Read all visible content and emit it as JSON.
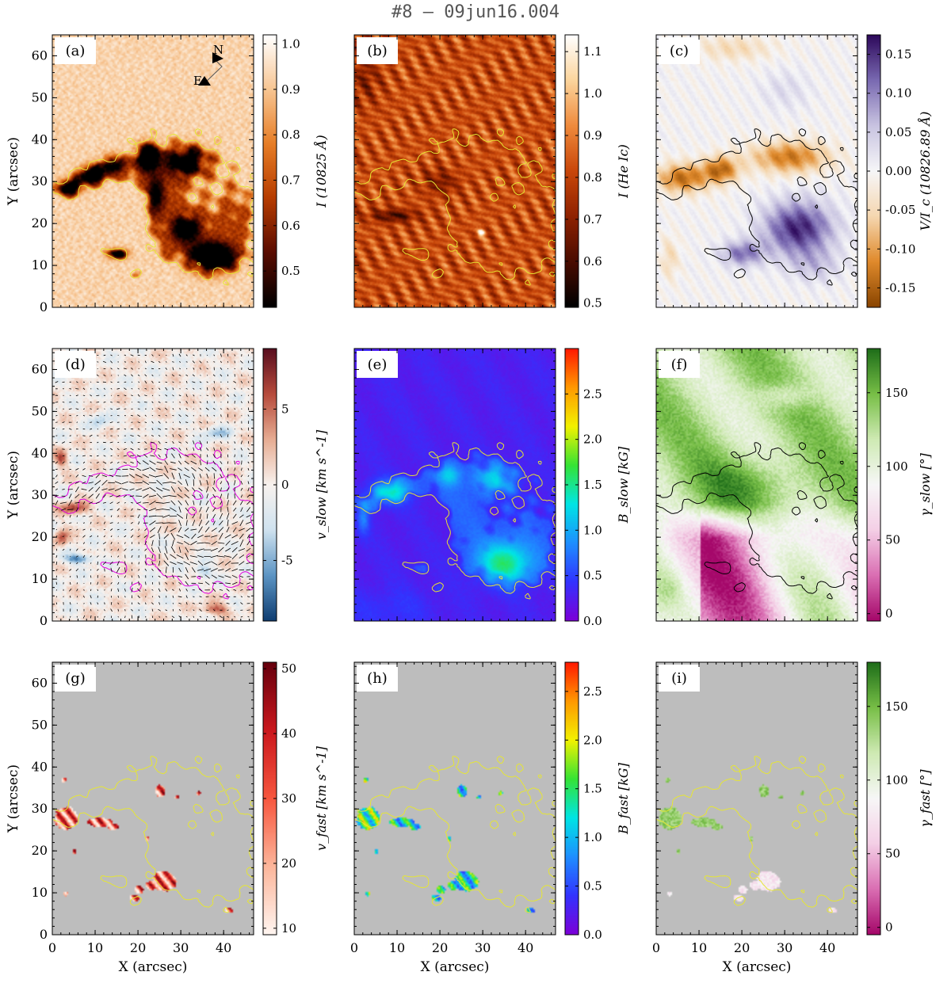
{
  "figure": {
    "title": "#8 – 09jun16.004",
    "x_label": "X (arcsec)",
    "y_label": "Y (arcsec)",
    "x_ticks": [
      0,
      10,
      20,
      30,
      40
    ],
    "y_ticks": [
      0,
      10,
      20,
      30,
      40,
      50,
      60
    ]
  },
  "colors": {
    "orange_map": [
      "#000000",
      "#5a0c00",
      "#b63c00",
      "#e67d26",
      "#f7c592",
      "#ffffff"
    ],
    "redhot_map": [
      "#000000",
      "#4a0c00",
      "#8f2200",
      "#c9470a",
      "#ef8a3c",
      "#fbd49c",
      "#ffffff"
    ],
    "circpol_map": [
      "#8a4500",
      "#e08a2c",
      "#f5d7b0",
      "#f6f6f8",
      "#c9c4e1",
      "#7a6ab2",
      "#2e0a5c"
    ],
    "doppler_map": [
      "#0f3e72",
      "#5d95c4",
      "#cfe2ef",
      "#f8f2ee",
      "#e7ad93",
      "#b74c3d",
      "#5a0f1f"
    ],
    "rainbow_map": [
      "#7b00d8",
      "#3233ff",
      "#1e8fff",
      "#00e5e5",
      "#35e335",
      "#f2f200",
      "#ff9a00",
      "#ff1a00"
    ],
    "incl_map": [
      "#a5086a",
      "#da6fb3",
      "#f4cfe6",
      "#f7f7f7",
      "#cfeab4",
      "#78bf47",
      "#1f6e1a"
    ],
    "reds_map": [
      "#fff5f0",
      "#fcb69b",
      "#f7573f",
      "#cb181d",
      "#67000d"
    ],
    "contour_yellow": "#e6e633",
    "contour_magenta": "#e100e1",
    "masked_gray": "#bdbdbd"
  },
  "chart_data": [
    {
      "id": "a",
      "type": "heatmap",
      "label": "(a)",
      "quantity": "continuum intensity",
      "colorbar_label": "I (10825 Å)",
      "range": [
        0.42,
        1.02
      ],
      "ticks": [
        0.5,
        0.6,
        0.7,
        0.8,
        0.9,
        1.0
      ],
      "tick_labels": [
        "0.5",
        "0.6",
        "0.7",
        "0.8",
        "0.9",
        "1.0"
      ],
      "colormap": "orange_map",
      "mode": "cont",
      "orientation": {
        "north": "N",
        "east": "E"
      }
    },
    {
      "id": "b",
      "type": "heatmap",
      "label": "(b)",
      "quantity": "He I intensity",
      "colorbar_label": "I (He Ic)",
      "range": [
        0.49,
        1.14
      ],
      "ticks": [
        0.5,
        0.6,
        0.7,
        0.8,
        0.9,
        1.0,
        1.1
      ],
      "tick_labels": [
        "0.5",
        "0.6",
        "0.7",
        "0.8",
        "0.9",
        "1.0",
        "1.1"
      ],
      "colormap": "redhot_map",
      "mode": "he"
    },
    {
      "id": "c",
      "type": "heatmap",
      "label": "(c)",
      "quantity": "circular polarization",
      "colorbar_label": "V/I_c (10826.89 Å)",
      "range": [
        -0.175,
        0.175
      ],
      "ticks": [
        -0.15,
        -0.1,
        -0.05,
        0.0,
        0.05,
        0.1,
        0.15
      ],
      "tick_labels": [
        "-0.15",
        "-0.10",
        "-0.05",
        "0.00",
        "0.05",
        "0.10",
        "0.15"
      ],
      "colormap": "circpol_map",
      "mode": "v"
    },
    {
      "id": "d",
      "type": "heatmap",
      "label": "(d)",
      "quantity": "slow component velocity",
      "colorbar_label": "v_slow [km s^-1]",
      "range": [
        -9,
        9
      ],
      "ticks": [
        -5,
        0,
        5
      ],
      "tick_labels": [
        "-5",
        "0",
        "5"
      ],
      "colormap": "doppler_map",
      "mode": "vel"
    },
    {
      "id": "e",
      "type": "heatmap",
      "label": "(e)",
      "quantity": "slow component field strength",
      "colorbar_label": "B_slow [kG]",
      "range": [
        0.0,
        3.0
      ],
      "ticks": [
        0.0,
        0.5,
        1.0,
        1.5,
        2.0,
        2.5
      ],
      "tick_labels": [
        "0.0",
        "0.5",
        "1.0",
        "1.5",
        "2.0",
        "2.5"
      ],
      "colormap": "rainbow_map",
      "mode": "bslow"
    },
    {
      "id": "f",
      "type": "heatmap",
      "label": "(f)",
      "quantity": "slow component inclination",
      "colorbar_label": "γ_slow [°]",
      "range": [
        -5,
        180
      ],
      "ticks": [
        0,
        50,
        100,
        150
      ],
      "tick_labels": [
        "0",
        "50",
        "100",
        "150"
      ],
      "colormap": "incl_map",
      "mode": "incl"
    },
    {
      "id": "g",
      "type": "heatmap",
      "label": "(g)",
      "quantity": "fast component velocity",
      "colorbar_label": "v_fast [km s^-1]",
      "range": [
        9,
        51
      ],
      "ticks": [
        10,
        20,
        30,
        40,
        50
      ],
      "tick_labels": [
        "10",
        "20",
        "30",
        "40",
        "50"
      ],
      "colormap": "reds_map",
      "mode": "vfast"
    },
    {
      "id": "h",
      "type": "heatmap",
      "label": "(h)",
      "quantity": "fast component field strength",
      "colorbar_label": "B_fast [kG]",
      "range": [
        0.0,
        2.8
      ],
      "ticks": [
        0.0,
        0.5,
        1.0,
        1.5,
        2.0,
        2.5
      ],
      "tick_labels": [
        "0.0",
        "0.5",
        "1.0",
        "1.5",
        "2.0",
        "2.5"
      ],
      "colormap": "rainbow_map",
      "mode": "bfast"
    },
    {
      "id": "i",
      "type": "heatmap",
      "label": "(i)",
      "quantity": "fast component inclination",
      "colorbar_label": "γ_fast [°]",
      "range": [
        -5,
        180
      ],
      "ticks": [
        0,
        50,
        100,
        150
      ],
      "tick_labels": [
        "0",
        "50",
        "100",
        "150"
      ],
      "colormap": "incl_map",
      "mode": "ifast"
    }
  ]
}
